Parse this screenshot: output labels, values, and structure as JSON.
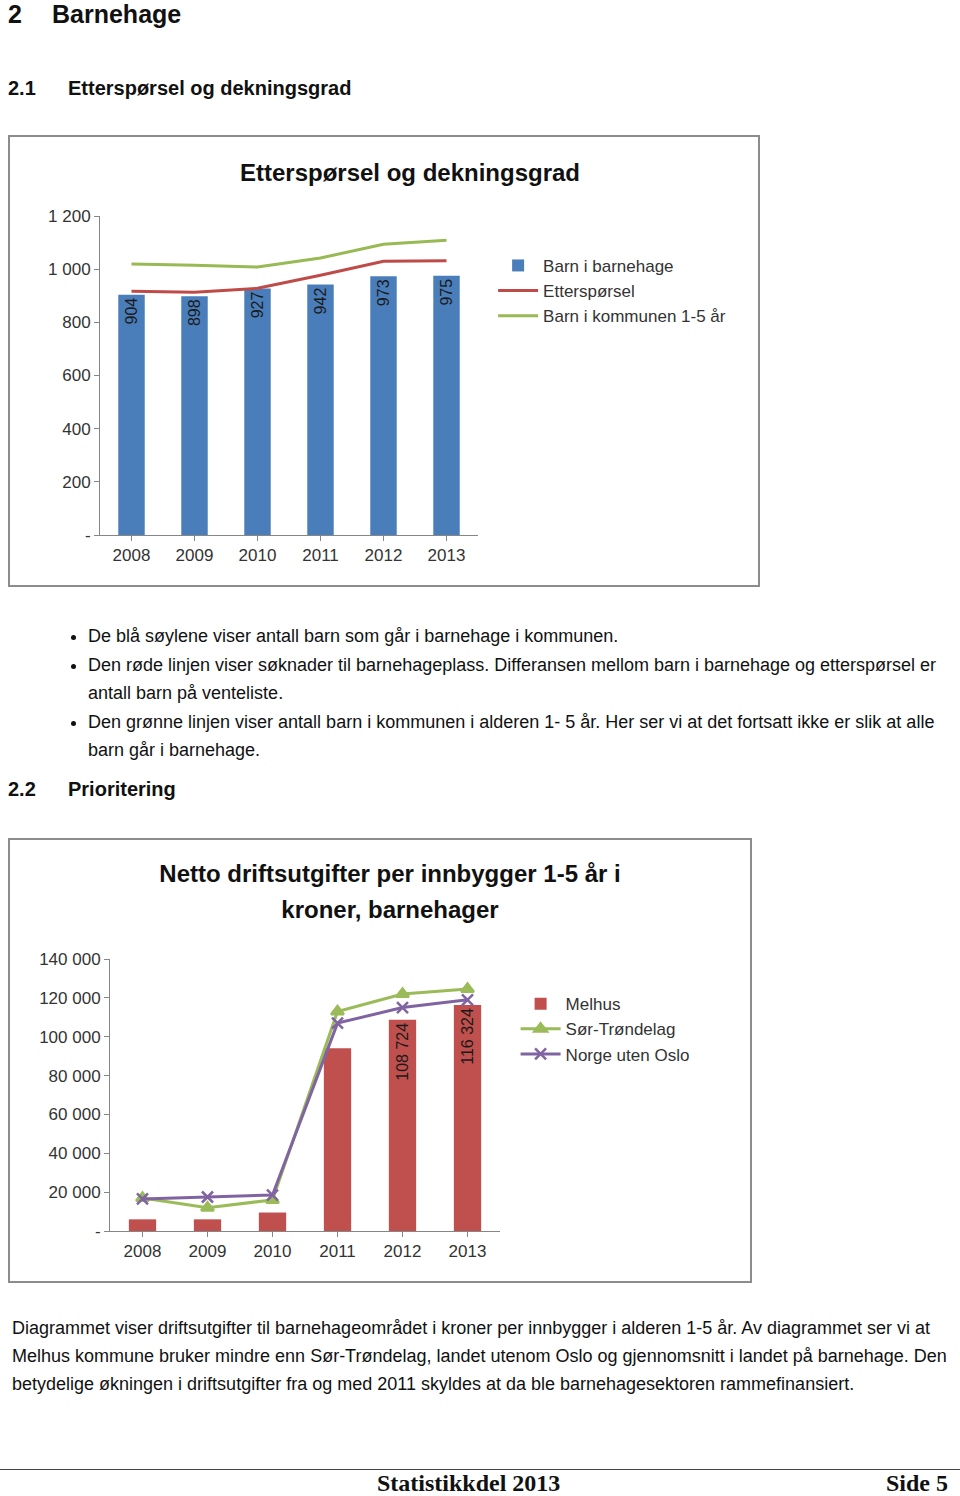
{
  "heading": {
    "number": "2",
    "title": "Barnehage"
  },
  "sections": [
    {
      "number": "2.1",
      "title": "Etterspørsel og dekningsgrad",
      "bullets": [
        "De blå søylene viser antall barn som går i barnehage i kommunen.",
        "Den røde linjen viser søknader til barnehageplass. Differansen mellom barn i barnehage og etterspørsel er antall barn på venteliste.",
        "Den grønne linjen viser antall barn i kommunen i alderen 1- 5 år. Her ser vi at det fortsatt ikke er slik at alle barn går i barnehage."
      ]
    },
    {
      "number": "2.2",
      "title": "Prioritering",
      "paragraph": "Diagrammet viser driftsutgifter til barnehageområdet i kroner per innbygger i alderen 1-5 år. Av diagrammet ser vi at Melhus kommune bruker mindre enn Sør-Trøndelag, landet utenom Oslo og gjennomsnitt i landet på barnehage. Den betydelige økningen i driftsutgifter fra og med 2011 skyldes at da ble barnehagesektoren rammefinansiert."
    }
  ],
  "chart_data": [
    {
      "type": "bar",
      "title": "Etterspørsel og dekningsgrad",
      "categories": [
        "2008",
        "2009",
        "2010",
        "2011",
        "2012",
        "2013"
      ],
      "series": [
        {
          "name": "Barn i barnehage",
          "type": "bar",
          "color": "#4a7ebb",
          "values": [
            904,
            898,
            927,
            942,
            973,
            975
          ],
          "data_labels": true
        },
        {
          "name": "Etterspørsel",
          "type": "line",
          "color": "#be4b48",
          "line_style": "solid",
          "marker": "none",
          "values": [
            917,
            913,
            928,
            977,
            1030,
            1032
          ]
        },
        {
          "name": "Barn i kommunen 1-5 år",
          "type": "line",
          "color": "#98b954",
          "line_style": "solid",
          "marker": "none",
          "values": [
            1019,
            1015,
            1008,
            1042,
            1094,
            1109
          ]
        }
      ],
      "ylim": [
        0,
        1200
      ],
      "yticks": [
        {
          "value": 0,
          "label": "-"
        },
        200,
        400,
        600,
        800,
        {
          "value": 1000,
          "label": "1 000"
        },
        {
          "value": 1200,
          "label": "1 200"
        }
      ],
      "grid": false,
      "legend": "right"
    },
    {
      "type": "bar",
      "title": "Netto driftsutgifter per innbygger 1-5 år i kroner, barnehager",
      "categories": [
        "2008",
        "2009",
        "2010",
        "2011",
        "2012",
        "2013"
      ],
      "series": [
        {
          "name": "Melhus",
          "type": "bar",
          "color": "#c0504d",
          "values": [
            6000,
            6000,
            9500,
            94000,
            108724,
            116324
          ],
          "data_labels": true,
          "value_labels": [
            null,
            null,
            null,
            null,
            "108 724",
            "116 324"
          ]
        },
        {
          "name": "Sør-Trøndelag",
          "type": "line",
          "color": "#9bbb59",
          "line_style": "solid",
          "marker": "triangle-up",
          "values": [
            17000,
            12000,
            16000,
            113000,
            122000,
            124500
          ]
        },
        {
          "name": "Norge uten Oslo",
          "type": "line",
          "color": "#8064a2",
          "line_style": "solid",
          "marker": "x",
          "values": [
            16500,
            17500,
            18500,
            107000,
            115000,
            119000
          ]
        }
      ],
      "ylim": [
        0,
        140000
      ],
      "yticks": [
        {
          "value": 0,
          "label": "-"
        },
        {
          "value": 20000,
          "label": "20 000"
        },
        {
          "value": 40000,
          "label": "40 000"
        },
        {
          "value": 60000,
          "label": "60 000"
        },
        {
          "value": 80000,
          "label": "80 000"
        },
        {
          "value": 100000,
          "label": "100 000"
        },
        {
          "value": 120000,
          "label": "120 000"
        },
        {
          "value": 140000,
          "label": "140 000"
        }
      ],
      "grid": false,
      "legend": "right"
    }
  ],
  "footer": {
    "left": "Statistikkdel 2013",
    "right": "Side 5"
  }
}
